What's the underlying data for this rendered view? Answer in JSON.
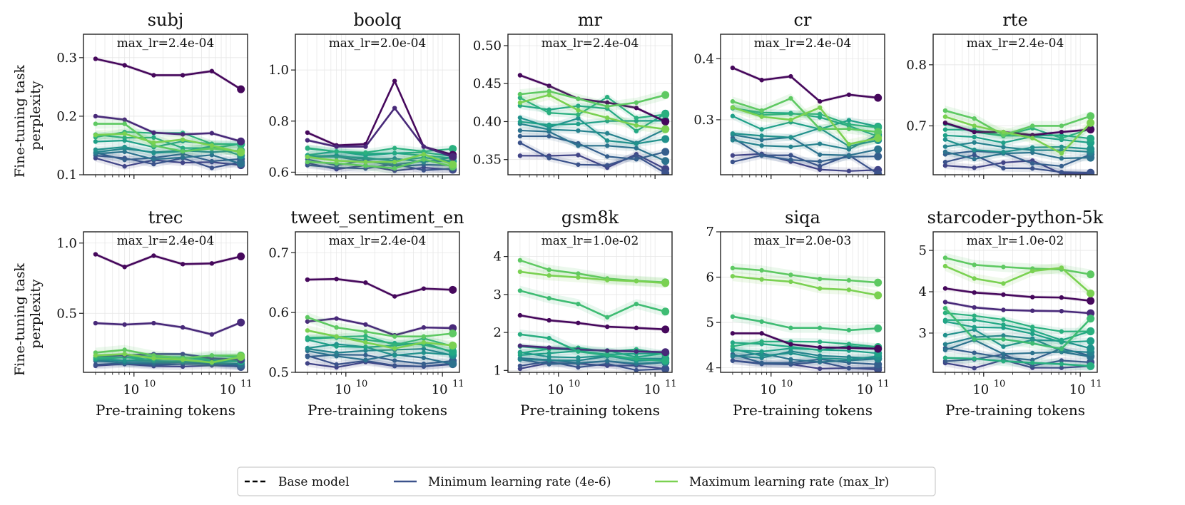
{
  "figure": {
    "ylabel_line1": "Fine-tuning task",
    "ylabel_line2": "perplexity",
    "xlabel": "Pre-training tokens",
    "x_tick_labels": [
      "10",
      "10",
      "10",
      "11"
    ],
    "x_tick_base": "10",
    "x_tick_exponents": [
      "10",
      "11"
    ]
  },
  "legend": {
    "items": [
      {
        "label": "Base model",
        "style": "dashed",
        "color": "#000000"
      },
      {
        "label": "Minimum learning rate (4e-6)",
        "style": "solid",
        "color": "#3b528b"
      },
      {
        "label": "Maximum learning rate (max_lr)",
        "style": "solid",
        "color": "#7ad151"
      }
    ]
  },
  "chart_data": [
    {
      "type": "line",
      "title": "subj",
      "annotation": "max_lr=2.4e-04",
      "xscale": "log",
      "x": [
        4000000000.0,
        8000000000.0,
        16000000000.0,
        32000000000.0,
        64000000000.0,
        128000000000.0
      ],
      "xlim": [
        3000000000.0,
        150000000000.0
      ],
      "ylim": [
        0.1,
        0.34
      ],
      "yticks": [
        0.1,
        0.2,
        0.3
      ],
      "ytick_labels": [
        "0.1",
        "0.2",
        "0.3"
      ],
      "top": [
        [
          0.298,
          0.287,
          0.27,
          0.27,
          0.277,
          0.246
        ],
        [
          0.2,
          0.194,
          0.172,
          0.169,
          0.171,
          0.157
        ]
      ],
      "band_lo": 0.12,
      "band_hi": 0.17,
      "green": [
        [
          0.187,
          0.187,
          0.15,
          0.14,
          0.145,
          0.14
        ],
        [
          0.168,
          0.17,
          0.155,
          0.16,
          0.15,
          0.138
        ]
      ]
    },
    {
      "type": "line",
      "title": "boolq",
      "annotation": "max_lr=2.0e-04",
      "xscale": "log",
      "x": [
        4000000000.0,
        8000000000.0,
        16000000000.0,
        32000000000.0,
        64000000000.0,
        128000000000.0
      ],
      "xlim": [
        3000000000.0,
        150000000000.0
      ],
      "ylim": [
        0.59,
        1.14
      ],
      "yticks": [
        0.6,
        0.8,
        1.0
      ],
      "ytick_labels": [
        "0.6",
        "0.8",
        "1.0"
      ],
      "top": [
        [
          0.755,
          0.705,
          0.71,
          0.957,
          0.7,
          0.668
        ],
        [
          0.725,
          0.7,
          0.7,
          0.851,
          0.7,
          0.66
        ]
      ],
      "band_lo": 0.62,
      "band_hi": 0.7,
      "green": [
        [
          0.64,
          0.635,
          0.625,
          0.615,
          0.65,
          0.622
        ],
        [
          0.66,
          0.645,
          0.64,
          0.64,
          0.67,
          0.63
        ]
      ]
    },
    {
      "type": "line",
      "title": "mr",
      "annotation": "max_lr=2.4e-04",
      "xscale": "log",
      "x": [
        4000000000.0,
        8000000000.0,
        16000000000.0,
        32000000000.0,
        64000000000.0,
        128000000000.0
      ],
      "xlim": [
        3000000000.0,
        150000000000.0
      ],
      "ylim": [
        0.33,
        0.515
      ],
      "yticks": [
        0.35,
        0.4,
        0.45,
        0.5
      ],
      "ytick_labels": [
        "0.35",
        "0.40",
        "0.45",
        "0.50"
      ],
      "top": [
        [
          0.461,
          0.447,
          0.43,
          0.425,
          0.418,
          0.4
        ]
      ],
      "band_lo": 0.35,
      "band_hi": 0.43,
      "green": [
        [
          0.436,
          0.44,
          0.43,
          0.42,
          0.425,
          0.435
        ],
        [
          0.425,
          0.435,
          0.415,
          0.405,
          0.395,
          0.39
        ]
      ]
    },
    {
      "type": "line",
      "title": "cr",
      "annotation": "max_lr=2.4e-04",
      "xscale": "log",
      "x": [
        4000000000.0,
        8000000000.0,
        16000000000.0,
        32000000000.0,
        64000000000.0,
        128000000000.0
      ],
      "xlim": [
        3000000000.0,
        150000000000.0
      ],
      "ylim": [
        0.21,
        0.44
      ],
      "yticks": [
        0.3,
        0.4
      ],
      "ytick_labels": [
        "0.3",
        "0.4"
      ],
      "top": [
        [
          0.385,
          0.365,
          0.371,
          0.33,
          0.341,
          0.336
        ]
      ],
      "band_lo": 0.23,
      "band_hi": 0.32,
      "green": [
        [
          0.33,
          0.315,
          0.335,
          0.285,
          0.285,
          0.28
        ],
        [
          0.32,
          0.305,
          0.3,
          0.32,
          0.26,
          0.27
        ]
      ]
    },
    {
      "type": "line",
      "title": "rte",
      "annotation": "max_lr=2.4e-04",
      "xscale": "log",
      "x": [
        4000000000.0,
        8000000000.0,
        16000000000.0,
        32000000000.0,
        64000000000.0,
        128000000000.0
      ],
      "xlim": [
        3000000000.0,
        150000000000.0
      ],
      "ylim": [
        0.62,
        0.85
      ],
      "yticks": [
        0.7,
        0.8
      ],
      "ytick_labels": [
        "0.7",
        "0.8"
      ],
      "top": [
        [
          0.705,
          0.69,
          0.69,
          0.685,
          0.69,
          0.694
        ]
      ],
      "band_lo": 0.635,
      "band_hi": 0.7,
      "green": [
        [
          0.725,
          0.712,
          0.685,
          0.7,
          0.7,
          0.716
        ],
        [
          0.715,
          0.7,
          0.69,
          0.68,
          0.655,
          0.705
        ]
      ]
    },
    {
      "type": "line",
      "title": "trec",
      "annotation": "max_lr=2.4e-04",
      "xscale": "log",
      "x": [
        4000000000.0,
        8000000000.0,
        16000000000.0,
        32000000000.0,
        64000000000.0,
        128000000000.0
      ],
      "xlim": [
        3000000000.0,
        150000000000.0
      ],
      "ylim": [
        0.08,
        1.08
      ],
      "yticks": [
        0.5,
        1.0
      ],
      "ytick_labels": [
        "0.5",
        "1.0"
      ],
      "top": [
        [
          0.92,
          0.83,
          0.91,
          0.85,
          0.855,
          0.905
        ],
        [
          0.43,
          0.42,
          0.43,
          0.4,
          0.35,
          0.435
        ],
        [
          0.2,
          0.2,
          0.21,
          0.21,
          0.18,
          0.17
        ]
      ],
      "band_lo": 0.13,
      "band_hi": 0.2,
      "green": [
        [
          0.22,
          0.24,
          0.2,
          0.18,
          0.2,
          0.2
        ],
        [
          0.2,
          0.21,
          0.18,
          0.17,
          0.15,
          0.19
        ]
      ]
    },
    {
      "type": "line",
      "title": "tweet_sentiment_en",
      "annotation": "max_lr=2.4e-04",
      "xscale": "log",
      "x": [
        4000000000.0,
        8000000000.0,
        16000000000.0,
        32000000000.0,
        64000000000.0,
        128000000000.0
      ],
      "xlim": [
        3000000000.0,
        150000000000.0
      ],
      "ylim": [
        0.5,
        0.735
      ],
      "yticks": [
        0.5,
        0.6,
        0.7
      ],
      "ytick_labels": [
        "0.5",
        "0.6",
        "0.7"
      ],
      "top": [
        [
          0.655,
          0.656,
          0.65,
          0.627,
          0.64,
          0.638
        ],
        [
          0.585,
          0.59,
          0.58,
          0.562,
          0.575,
          0.574
        ]
      ],
      "band_lo": 0.515,
      "band_hi": 0.56,
      "green": [
        [
          0.592,
          0.575,
          0.568,
          0.56,
          0.56,
          0.565
        ],
        [
          0.57,
          0.56,
          0.55,
          0.54,
          0.55,
          0.545
        ]
      ]
    },
    {
      "type": "line",
      "title": "gsm8k",
      "annotation": "max_lr=1.0e-02",
      "xscale": "log",
      "x": [
        4000000000.0,
        8000000000.0,
        16000000000.0,
        32000000000.0,
        64000000000.0,
        128000000000.0
      ],
      "xlim": [
        3000000000.0,
        150000000000.0
      ],
      "ylim": [
        0.95,
        4.65
      ],
      "yticks": [
        1,
        2,
        3,
        4
      ],
      "ytick_labels": [
        "1",
        "2",
        "3",
        "4"
      ],
      "top": [
        [
          2.45,
          2.32,
          2.25,
          2.15,
          2.12,
          2.08
        ],
        [
          1.65,
          1.6,
          1.55,
          1.52,
          1.5,
          1.48
        ]
      ],
      "band_lo": 1.1,
      "band_hi": 1.6,
      "green": [
        [
          3.9,
          3.65,
          3.55,
          3.42,
          3.36,
          3.32
        ],
        [
          3.6,
          3.5,
          3.45,
          3.38,
          3.35,
          3.3
        ],
        [
          3.1,
          2.9,
          2.75,
          2.4,
          2.75,
          2.55
        ],
        [
          1.95,
          1.85,
          1.5,
          1.4,
          1.3,
          1.25
        ]
      ]
    },
    {
      "type": "line",
      "title": "siqa",
      "annotation": "max_lr=2.0e-03",
      "xscale": "log",
      "x": [
        4000000000.0,
        8000000000.0,
        16000000000.0,
        32000000000.0,
        64000000000.0,
        128000000000.0
      ],
      "xlim": [
        3000000000.0,
        150000000000.0
      ],
      "ylim": [
        3.9,
        7.0
      ],
      "yticks": [
        4,
        5,
        6,
        7
      ],
      "ytick_labels": [
        "4",
        "5",
        "6",
        "7"
      ],
      "top": [
        [
          4.76,
          4.76,
          4.52,
          4.45,
          4.44,
          4.42
        ]
      ],
      "band_lo": 4.05,
      "band_hi": 4.6,
      "green": [
        [
          6.2,
          6.15,
          6.05,
          5.96,
          5.93,
          5.88
        ],
        [
          6.02,
          5.95,
          5.9,
          5.75,
          5.72,
          5.6
        ],
        [
          5.13,
          5.02,
          4.88,
          4.88,
          4.83,
          4.87
        ]
      ]
    },
    {
      "type": "line",
      "title": "starcoder-python-5k",
      "annotation": "max_lr=1.0e-02",
      "xscale": "log",
      "x": [
        4000000000.0,
        8000000000.0,
        16000000000.0,
        32000000000.0,
        64000000000.0,
        128000000000.0
      ],
      "xlim": [
        3000000000.0,
        150000000000.0
      ],
      "ylim": [
        2.05,
        5.45
      ],
      "yticks": [
        3,
        4,
        5
      ],
      "ytick_labels": [
        "3",
        "4",
        "5"
      ],
      "top": [
        [
          4.08,
          3.98,
          3.93,
          3.87,
          3.86,
          3.78
        ],
        [
          3.75,
          3.62,
          3.56,
          3.54,
          3.53,
          3.48
        ]
      ],
      "band_lo": 2.3,
      "band_hi": 3.4,
      "green": [
        [
          4.82,
          4.65,
          4.6,
          4.56,
          4.54,
          4.42
        ],
        [
          4.62,
          4.32,
          4.2,
          4.5,
          4.58,
          3.96
        ],
        [
          3.6,
          2.85,
          2.85,
          2.75,
          2.62,
          3.35
        ],
        [
          2.4,
          2.38,
          2.32,
          2.28,
          2.25,
          2.2
        ]
      ]
    }
  ]
}
